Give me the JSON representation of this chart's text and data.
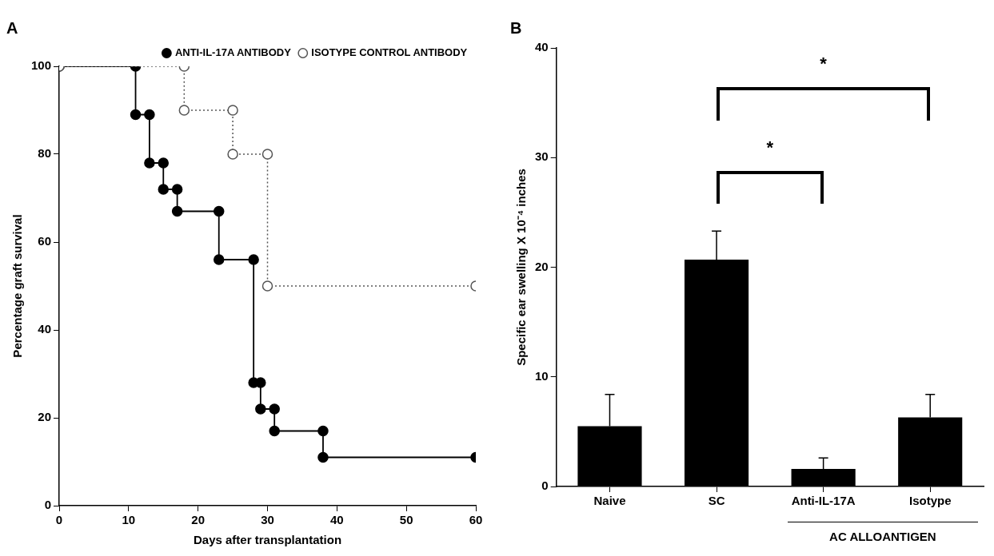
{
  "chart_data": [
    {
      "type": "line",
      "title": "A",
      "xlabel": "Days after transplantation",
      "ylabel": "Percentage graft survival",
      "xlim": [
        0,
        60
      ],
      "xticks": [
        0,
        10,
        20,
        30,
        40,
        50,
        60
      ],
      "ylim": [
        0,
        100
      ],
      "yticks": [
        0,
        20,
        40,
        60,
        80,
        100
      ],
      "grid": false,
      "legend": "top right",
      "marker": "circle",
      "series": [
        {
          "name": "ANTI-IL-17A ANTIBODY",
          "color": "#000000",
          "line_style": "solid",
          "x": [
            0,
            11,
            11,
            13,
            13,
            15,
            15,
            17,
            17,
            23,
            23,
            28,
            28,
            29,
            29,
            31,
            31,
            38,
            38,
            60
          ],
          "values": [
            100,
            100,
            89,
            89,
            78,
            78,
            72,
            72,
            67,
            67,
            56,
            56,
            28,
            28,
            22,
            22,
            17,
            17,
            11,
            11
          ]
        },
        {
          "name": "ISOTYPE CONTROL ANTIBODY",
          "color": "#555555",
          "line_style": "dotted",
          "x": [
            0,
            18,
            18,
            25,
            25,
            30,
            30,
            60
          ],
          "values": [
            100,
            100,
            90,
            90,
            80,
            80,
            50,
            50
          ]
        }
      ]
    },
    {
      "type": "bar",
      "title": "B",
      "ylabel": "Specific ear swelling X 10⁻⁴ inches",
      "categories": [
        "Naive",
        "SC",
        "Anti-IL-17A",
        "Isotype"
      ],
      "values": [
        5.5,
        20.7,
        1.6,
        6.3
      ],
      "errors": [
        [
          5.5,
          8.4
        ],
        [
          20.7,
          23.3
        ],
        [
          1.6,
          2.6
        ],
        [
          6.3,
          8.4
        ]
      ],
      "color": "#000000",
      "ylim": [
        0,
        40
      ],
      "yticks": [
        0,
        10,
        20,
        30,
        40
      ],
      "grid": false,
      "legend": false,
      "annotations": [
        "*",
        "*",
        "AC ALLOANTIGEN"
      ]
    }
  ]
}
